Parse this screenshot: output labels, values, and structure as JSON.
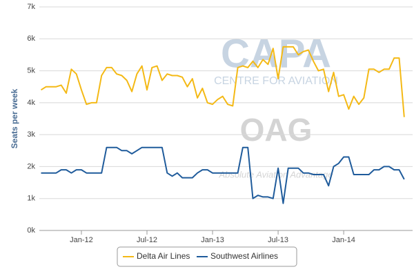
{
  "chart_data": {
    "type": "line",
    "ylabel": "Seats per week",
    "watermark": [
      "CAPA",
      "CENTRE FOR AVIATION",
      "OAG",
      "Absolute Aviation Advantage"
    ],
    "categories": [
      null,
      null,
      null,
      null,
      null,
      null,
      null,
      null,
      "Jan-12",
      null,
      null,
      null,
      null,
      null,
      null,
      null,
      null,
      null,
      null,
      null,
      null,
      "Jul-12",
      null,
      null,
      null,
      null,
      null,
      null,
      null,
      null,
      null,
      null,
      null,
      null,
      "Jan-13",
      null,
      null,
      null,
      null,
      null,
      null,
      null,
      null,
      null,
      null,
      null,
      null,
      "Jul-13",
      null,
      null,
      null,
      null,
      null,
      null,
      null,
      null,
      null,
      null,
      null,
      null,
      "Jan-14",
      null,
      null,
      null,
      null,
      null,
      null,
      null,
      null,
      null,
      null,
      null,
      null
    ],
    "series": [
      {
        "name": "Delta Air Lines",
        "color": "#f4b915",
        "values": [
          4400,
          4500,
          4500,
          4500,
          4550,
          4300,
          5050,
          4900,
          4400,
          3950,
          4000,
          4000,
          4850,
          5100,
          5100,
          4900,
          4850,
          4700,
          4350,
          4900,
          5150,
          4400,
          5100,
          5150,
          4700,
          4900,
          4850,
          4850,
          4800,
          4500,
          4750,
          4150,
          4450,
          4000,
          3950,
          4100,
          4200,
          3950,
          3900,
          5100,
          5150,
          5100,
          5300,
          5100,
          5350,
          5200,
          5700,
          4750,
          5750,
          5750,
          5750,
          5500,
          5600,
          5650,
          5300,
          5000,
          5050,
          4350,
          4950,
          4200,
          4250,
          3800,
          4200,
          3950,
          4150,
          5050,
          5050,
          4950,
          5050,
          5050,
          5400,
          5400,
          3550
        ]
      },
      {
        "name": "Southwest Airlines",
        "color": "#1f5b9b",
        "values": [
          1800,
          1800,
          1800,
          1800,
          1900,
          1900,
          1800,
          1900,
          1900,
          1800,
          1800,
          1800,
          1800,
          2600,
          2600,
          2600,
          2500,
          2500,
          2400,
          2500,
          2600,
          2600,
          2600,
          2600,
          2600,
          1800,
          1700,
          1800,
          1650,
          1650,
          1650,
          1800,
          1900,
          1900,
          1800,
          1800,
          1800,
          1800,
          1800,
          1800,
          2600,
          2600,
          1000,
          1100,
          1050,
          1050,
          1000,
          1950,
          850,
          1950,
          1950,
          1950,
          1800,
          1800,
          1750,
          1750,
          1750,
          1400,
          2000,
          2100,
          2300,
          2300,
          1750,
          1750,
          1750,
          1750,
          1900,
          1900,
          2000,
          2000,
          1900,
          1900,
          1600
        ]
      }
    ],
    "ylim": [
      0,
      7000
    ],
    "yticks": [
      {
        "value": 0,
        "label": "0k"
      },
      {
        "value": 1000,
        "label": "1k"
      },
      {
        "value": 2000,
        "label": "2k"
      },
      {
        "value": 3000,
        "label": "3k"
      },
      {
        "value": 4000,
        "label": "4k"
      },
      {
        "value": 5000,
        "label": "5k"
      },
      {
        "value": 6000,
        "label": "6k"
      },
      {
        "value": 7000,
        "label": "7k"
      }
    ],
    "grid": true,
    "legend": "bottom"
  }
}
